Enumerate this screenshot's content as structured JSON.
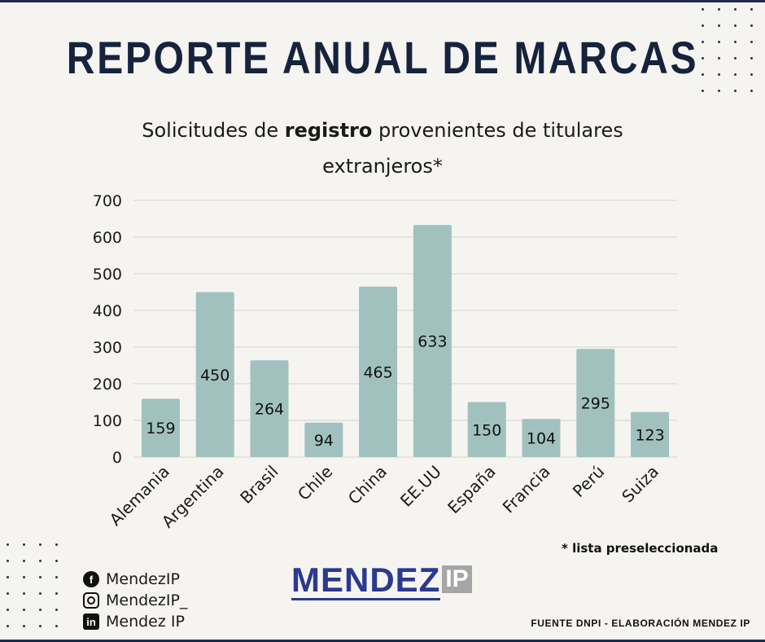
{
  "header": {
    "title": "REPORTE ANUAL DE MARCAS",
    "subtitle_part1": "Solicitudes de ",
    "subtitle_bold": "registro",
    "subtitle_part2": " provenientes de titulares",
    "subtitle_line2": "extranjeros*"
  },
  "chart_data": {
    "type": "bar",
    "categories": [
      "Alemania",
      "Argentina",
      "Brasil",
      "Chile",
      "China",
      "EE.UU",
      "España",
      "Francia",
      "Perú",
      "Suiza"
    ],
    "values": [
      159,
      450,
      264,
      94,
      465,
      633,
      150,
      104,
      295,
      123
    ],
    "ylim": [
      0,
      700
    ],
    "yticks": [
      0,
      100,
      200,
      300,
      400,
      500,
      600,
      700
    ],
    "grid": true,
    "bar_color": "#a1c1bf",
    "data_labels": true
  },
  "footnote": "* lista  preseleccionada",
  "source": "FUENTE DNPI - ELABORACIÓN MENDEZ IP",
  "logo": {
    "main": "MENDEZ",
    "badge": "IP"
  },
  "social": [
    {
      "icon": "facebook-icon",
      "glyph": "f",
      "label": "MendezIP"
    },
    {
      "icon": "instagram-icon",
      "glyph": "",
      "label": "MendezIP_"
    },
    {
      "icon": "linkedin-icon",
      "glyph": "in",
      "label": "Mendez IP"
    }
  ],
  "colors": {
    "title": "#15233d",
    "accent": "#2b3a8f",
    "bar": "#a1c1bf",
    "dots": "#23355a"
  }
}
